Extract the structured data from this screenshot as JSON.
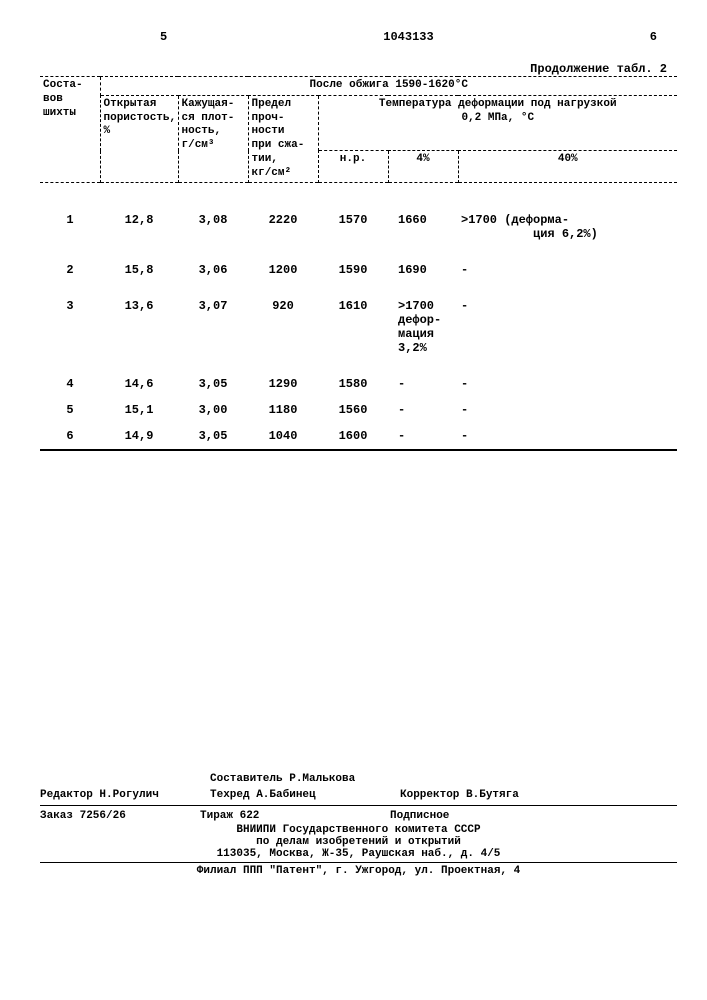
{
  "header": {
    "left_num": "5",
    "doc_num": "1043133",
    "right_num": "6",
    "continuation": "Продолжение табл. 2"
  },
  "table": {
    "spanning_header": "После обжига 1590-1620°С",
    "columns": {
      "c1_line1": "Соста-",
      "c1_line2": "вов",
      "c1_line3": "шихты",
      "c2_line1": "Открытая",
      "c2_line2": "пористость,",
      "c2_line3": "%",
      "c3_line1": "Кажущая-",
      "c3_line2": "ся плот-",
      "c3_line3": "ность,",
      "c3_line4": "г/см³",
      "c4_line1": "Предел",
      "c4_line2": "проч-",
      "c4_line3": "ности",
      "c4_line4": "при сжа-",
      "c4_line5": "тии,",
      "c4_line6": "кг/см²",
      "c5_span_line1": "Температура деформации под нагрузкой",
      "c5_span_line2": "0,2 МПа, °С",
      "c5a": "н.р.",
      "c5b": "4%",
      "c5c": "40%"
    },
    "rows": [
      {
        "n": "1",
        "por": "12,8",
        "den": "3,08",
        "str": "2220",
        "t1": "1570",
        "t2": "1660",
        "t3": ">1700 (деформа-\n          ция 6,2%)"
      },
      {
        "n": "2",
        "por": "15,8",
        "den": "3,06",
        "str": "1200",
        "t1": "1590",
        "t2": "1690",
        "t3": "-"
      },
      {
        "n": "3",
        "por": "13,6",
        "den": "3,07",
        "str": "920",
        "t1": "1610",
        "t2": ">1700\nдефор-\nмация\n3,2%",
        "t3": "-"
      },
      {
        "n": "4",
        "por": "14,6",
        "den": "3,05",
        "str": "1290",
        "t1": "1580",
        "t2": "-",
        "t3": "-"
      },
      {
        "n": "5",
        "por": "15,1",
        "den": "3,00",
        "str": "1180",
        "t1": "1560",
        "t2": "-",
        "t3": "-"
      },
      {
        "n": "6",
        "por": "14,9",
        "den": "3,05",
        "str": "1040",
        "t1": "1600",
        "t2": "-",
        "t3": "-"
      }
    ]
  },
  "colophon": {
    "compiler": "Составитель Р.Малькова",
    "editor": "Редактор Н.Рогулич",
    "techred": "Техред А.Бабинец",
    "corrector": "Корректор В.Бутяга",
    "order": "Заказ 7256/26",
    "tirazh": "Тираж 622",
    "podpis": "Подписное",
    "org1": "ВНИИПИ Государственного комитета СССР",
    "org2": "по делам изобретений и открытий",
    "addr": "113035, Москва, Ж-35, Раушская наб., д. 4/5",
    "filial": "Филиал ППП \"Патент\", г. Ужгород, ул. Проектная, 4"
  }
}
